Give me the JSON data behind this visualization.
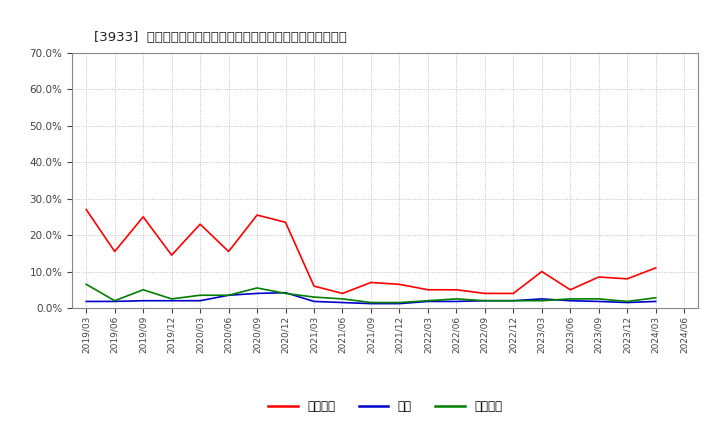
{
  "title": "[3933]  売上債権、在庫、買入債務の総資産に対する比率の推移",
  "x_labels": [
    "2019/03",
    "2019/06",
    "2019/09",
    "2019/12",
    "2020/03",
    "2020/06",
    "2020/09",
    "2020/12",
    "2021/03",
    "2021/06",
    "2021/09",
    "2021/12",
    "2022/03",
    "2022/06",
    "2022/09",
    "2022/12",
    "2023/03",
    "2023/06",
    "2023/09",
    "2023/12",
    "2024/03",
    "2024/06"
  ],
  "series_order": [
    "売上債権",
    "在庫",
    "買入債務"
  ],
  "series": {
    "売上債権": {
      "color": "#ff0000",
      "values": [
        0.27,
        0.155,
        0.25,
        0.145,
        0.23,
        0.155,
        0.255,
        0.235,
        0.06,
        0.04,
        0.07,
        0.065,
        0.05,
        0.05,
        0.04,
        0.04,
        0.1,
        0.05,
        0.085,
        0.08,
        0.11,
        null
      ]
    },
    "在庫": {
      "color": "#0000cc",
      "values": [
        0.018,
        0.018,
        0.02,
        0.02,
        0.02,
        0.035,
        0.04,
        0.042,
        0.018,
        0.015,
        0.012,
        0.012,
        0.018,
        0.018,
        0.02,
        0.02,
        0.025,
        0.02,
        0.018,
        0.015,
        0.018,
        null
      ]
    },
    "買入債務": {
      "color": "#008000",
      "values": [
        0.065,
        0.02,
        0.05,
        0.025,
        0.035,
        0.035,
        0.055,
        0.04,
        0.03,
        0.025,
        0.015,
        0.015,
        0.02,
        0.025,
        0.02,
        0.02,
        0.02,
        0.025,
        0.025,
        0.018,
        0.028,
        null
      ]
    }
  },
  "ylim": [
    0.0,
    0.7
  ],
  "yticks": [
    0.0,
    0.1,
    0.2,
    0.3,
    0.4,
    0.5,
    0.6,
    0.7
  ],
  "background_color": "#ffffff",
  "grid_color": "#aaaaaa",
  "legend_labels": [
    "売上債権",
    "在庫",
    "買入債務"
  ],
  "legend_colors": [
    "#ff0000",
    "#0000cc",
    "#008000"
  ]
}
